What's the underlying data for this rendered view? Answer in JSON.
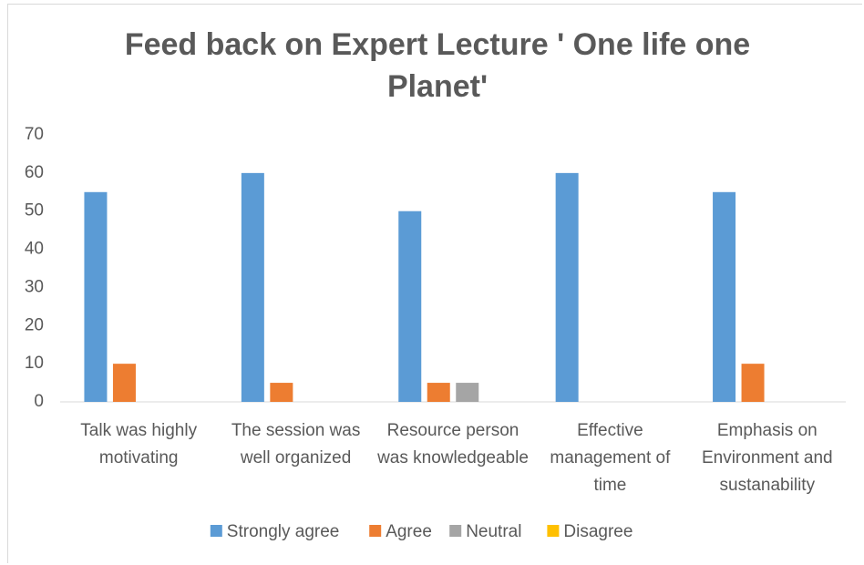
{
  "chart_data": {
    "type": "bar",
    "title": "Feed back on Expert Lecture ' One life one Planet'",
    "categories": [
      "Talk was highly motivating",
      "The session was well organized",
      "Resource person was knowledgeable",
      "Effective management of time",
      "Emphasis on Environment and sustanability"
    ],
    "series": [
      {
        "name": "Strongly agree",
        "color": "#5b9bd5",
        "values": [
          55,
          60,
          50,
          60,
          55
        ]
      },
      {
        "name": "Agree",
        "color": "#ed7d31",
        "values": [
          10,
          5,
          5,
          0,
          10
        ]
      },
      {
        "name": "Neutral",
        "color": "#a5a5a5",
        "values": [
          0,
          0,
          5,
          0,
          0
        ]
      },
      {
        "name": "Disagree",
        "color": "#ffc000",
        "values": [
          0,
          0,
          0,
          0,
          0
        ]
      }
    ],
    "ylim": [
      0,
      70
    ],
    "yticks": [
      0,
      10,
      20,
      30,
      40,
      50,
      60,
      70
    ],
    "grid": false,
    "legend": "bottom"
  }
}
